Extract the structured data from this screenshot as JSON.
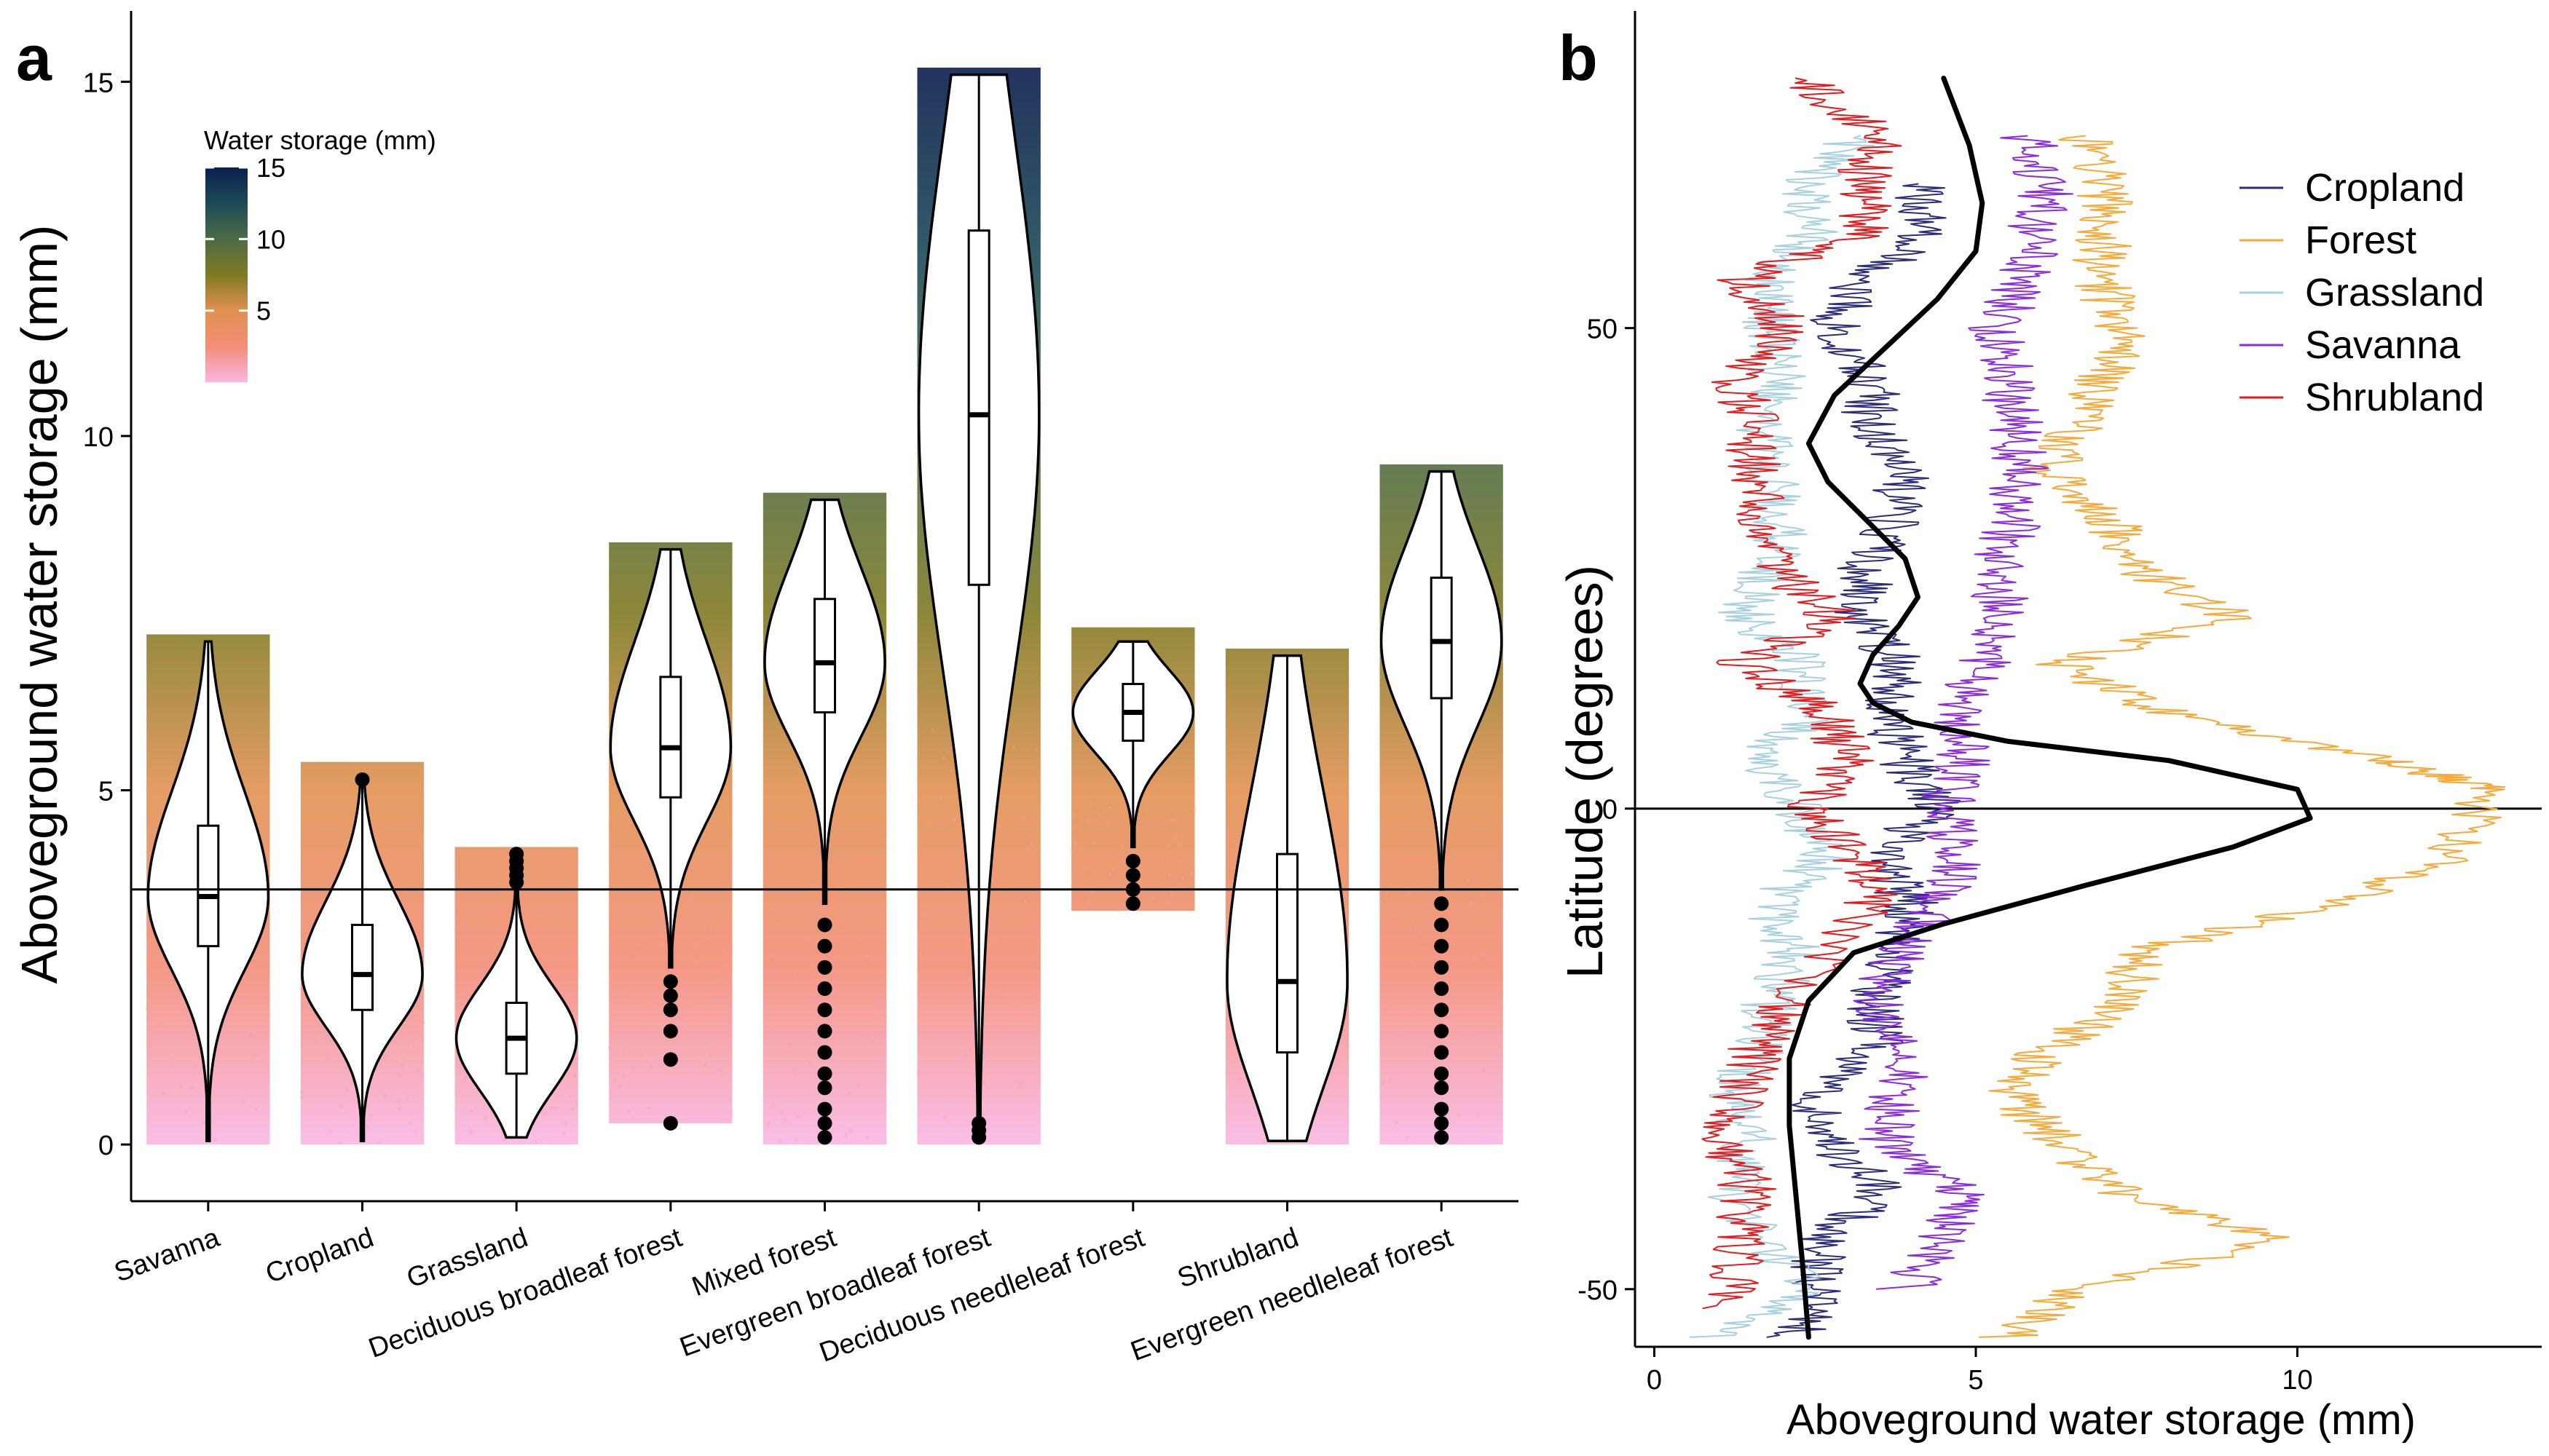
{
  "panels": {
    "a": {
      "letter": "a"
    },
    "b": {
      "letter": "b"
    }
  },
  "chart_data": [
    {
      "panel": "a",
      "type": "violin",
      "ylabel": "Aboveground water storage (mm)",
      "ylim": [
        -0.8,
        16
      ],
      "yticks": [
        0,
        5,
        10,
        15
      ],
      "reference_line_y": 3.6,
      "legend": {
        "title": "Water storage (mm)",
        "ticks": [
          5,
          10,
          15
        ],
        "placement": "top-left",
        "colors": [
          "#f9b6e4",
          "#f38d78",
          "#e29152",
          "#7f7a24",
          "#4d6b46",
          "#1d4a57",
          "#0b1f4d"
        ]
      },
      "categories": [
        "Savanna",
        "Cropland",
        "Grassland",
        "Deciduous broadleaf forest",
        "Mixed forest",
        "Evergreen broadleaf forest",
        "Deciduous needleleaf forest",
        "Shrubland",
        "Evergreen needleleaf forest"
      ],
      "series": [
        {
          "category": "Savanna",
          "min": 0.05,
          "q1": 2.8,
          "median": 3.5,
          "q3": 4.5,
          "max": 7.1,
          "scatter_min": 0.0,
          "scatter_max": 7.2,
          "outliers": []
        },
        {
          "category": "Cropland",
          "min": 0.05,
          "q1": 1.9,
          "median": 2.4,
          "q3": 3.1,
          "max": 5.2,
          "scatter_min": 0.0,
          "scatter_max": 5.4,
          "outliers": [
            5.15
          ]
        },
        {
          "category": "Grassland",
          "min": 0.1,
          "q1": 1.0,
          "median": 1.5,
          "q3": 2.0,
          "max": 4.1,
          "scatter_min": 0.0,
          "scatter_max": 4.2,
          "outliers": [
            3.7,
            3.8,
            3.9,
            4.0,
            4.1
          ]
        },
        {
          "category": "Deciduous broadleaf forest",
          "min": 2.5,
          "q1": 4.9,
          "median": 5.6,
          "q3": 6.6,
          "max": 8.4,
          "scatter_min": 0.3,
          "scatter_max": 8.5,
          "outliers": [
            0.3,
            1.2,
            1.6,
            1.9,
            2.1,
            2.3
          ]
        },
        {
          "category": "Mixed forest",
          "min": 3.4,
          "q1": 6.1,
          "median": 6.8,
          "q3": 7.7,
          "max": 9.1,
          "scatter_min": 0.0,
          "scatter_max": 9.2,
          "outliers": [
            0.1,
            0.3,
            0.5,
            0.8,
            1.0,
            1.3,
            1.6,
            1.9,
            2.2,
            2.5,
            2.8,
            3.1
          ]
        },
        {
          "category": "Evergreen broadleaf forest",
          "min": 0.1,
          "q1": 7.9,
          "median": 10.3,
          "q3": 12.9,
          "max": 15.1,
          "scatter_min": 0.0,
          "scatter_max": 15.2,
          "outliers": [
            0.1,
            0.2,
            0.3
          ]
        },
        {
          "category": "Deciduous needleleaf forest",
          "min": 4.2,
          "q1": 5.7,
          "median": 6.1,
          "q3": 6.5,
          "max": 7.1,
          "scatter_min": 3.3,
          "scatter_max": 7.3,
          "outliers": [
            3.4,
            3.6,
            3.8,
            4.0
          ]
        },
        {
          "category": "Shrubland",
          "min": 0.05,
          "q1": 1.3,
          "median": 2.3,
          "q3": 4.1,
          "max": 6.9,
          "scatter_min": 0.0,
          "scatter_max": 7.0,
          "outliers": []
        },
        {
          "category": "Evergreen needleleaf forest",
          "min": 3.6,
          "q1": 6.3,
          "median": 7.1,
          "q3": 8.0,
          "max": 9.5,
          "scatter_min": 0.0,
          "scatter_max": 9.6,
          "outliers": [
            0.1,
            0.3,
            0.5,
            0.8,
            1.0,
            1.3,
            1.6,
            1.9,
            2.2,
            2.5,
            2.8,
            3.1,
            3.4
          ]
        }
      ]
    },
    {
      "panel": "b",
      "type": "line",
      "xlabel": "Aboveground water storage (mm)",
      "ylabel": "Latitude (degrees)",
      "xlim": [
        -0.3,
        13.8
      ],
      "ylim": [
        -56,
        83
      ],
      "xticks": [
        0,
        5,
        10
      ],
      "yticks": [
        -50,
        0,
        50
      ],
      "reference_line_y": 0,
      "legend_placement": "top-right",
      "series": [
        {
          "name": "Cropland",
          "color": "#2b2c7c",
          "width": 2,
          "points": [
            [
              2.2,
              -55
            ],
            [
              2.5,
              -50
            ],
            [
              2.6,
              -45
            ],
            [
              3.6,
              -40
            ],
            [
              2.8,
              -35
            ],
            [
              2.4,
              -30
            ],
            [
              3.5,
              -25
            ],
            [
              3.4,
              -20
            ],
            [
              3.8,
              -15
            ],
            [
              4.0,
              -10
            ],
            [
              3.5,
              -5
            ],
            [
              4.4,
              0
            ],
            [
              3.9,
              5
            ],
            [
              3.6,
              10
            ],
            [
              3.8,
              15
            ],
            [
              3.2,
              20
            ],
            [
              3.3,
              25
            ],
            [
              3.7,
              30
            ],
            [
              3.9,
              35
            ],
            [
              3.3,
              40
            ],
            [
              3.4,
              45
            ],
            [
              2.8,
              50
            ],
            [
              3.2,
              55
            ],
            [
              4.3,
              60
            ],
            [
              4.1,
              65
            ]
          ]
        },
        {
          "name": "Forest",
          "color": "#f7a838",
          "width": 2,
          "points": [
            [
              5.5,
              -55
            ],
            [
              6.5,
              -50
            ],
            [
              9.7,
              -45
            ],
            [
              7.2,
              -40
            ],
            [
              6.4,
              -35
            ],
            [
              5.5,
              -30
            ],
            [
              6.1,
              -25
            ],
            [
              7.4,
              -20
            ],
            [
              7.5,
              -15
            ],
            [
              10.5,
              -10
            ],
            [
              12.4,
              -5
            ],
            [
              13.0,
              2
            ],
            [
              11.3,
              5
            ],
            [
              8.0,
              10
            ],
            [
              6.3,
              15
            ],
            [
              9.0,
              20
            ],
            [
              7.5,
              25
            ],
            [
              7.1,
              30
            ],
            [
              6.1,
              35
            ],
            [
              6.6,
              40
            ],
            [
              7.0,
              45
            ],
            [
              7.3,
              50
            ],
            [
              6.9,
              55
            ],
            [
              7.0,
              60
            ],
            [
              7.0,
              65
            ],
            [
              6.7,
              70
            ]
          ]
        },
        {
          "name": "Grassland",
          "color": "#a7d0e0",
          "width": 2,
          "points": [
            [
              1.0,
              -55
            ],
            [
              2.3,
              -50
            ],
            [
              1.2,
              -40
            ],
            [
              1.5,
              -35
            ],
            [
              1.2,
              -30
            ],
            [
              1.6,
              -25
            ],
            [
              1.8,
              -20
            ],
            [
              2.2,
              -15
            ],
            [
              1.8,
              -10
            ],
            [
              2.7,
              -5
            ],
            [
              2.2,
              0
            ],
            [
              1.6,
              5
            ],
            [
              2.4,
              10
            ],
            [
              2.3,
              15
            ],
            [
              1.4,
              20
            ],
            [
              1.8,
              25
            ],
            [
              2.0,
              30
            ],
            [
              1.8,
              35
            ],
            [
              1.7,
              40
            ],
            [
              1.9,
              45
            ],
            [
              1.8,
              50
            ],
            [
              1.8,
              55
            ],
            [
              2.4,
              60
            ],
            [
              2.4,
              65
            ],
            [
              3.2,
              70
            ]
          ]
        },
        {
          "name": "Savanna",
          "color": "#8a2be2",
          "width": 2,
          "points": [
            [
              3.9,
              -50
            ],
            [
              4.6,
              -44
            ],
            [
              4.8,
              -40
            ],
            [
              3.6,
              -35
            ],
            [
              3.7,
              -30
            ],
            [
              4.0,
              -25
            ],
            [
              3.4,
              -20
            ],
            [
              3.8,
              -15
            ],
            [
              4.4,
              -10
            ],
            [
              4.7,
              -5
            ],
            [
              4.5,
              0
            ],
            [
              4.8,
              5
            ],
            [
              4.7,
              10
            ],
            [
              5.1,
              15
            ],
            [
              5.4,
              20
            ],
            [
              5.3,
              25
            ],
            [
              5.6,
              30
            ],
            [
              5.7,
              35
            ],
            [
              5.6,
              40
            ],
            [
              5.5,
              45
            ],
            [
              5.3,
              50
            ],
            [
              5.8,
              55
            ],
            [
              5.9,
              60
            ],
            [
              6.1,
              65
            ],
            [
              5.8,
              70
            ]
          ]
        },
        {
          "name": "Shrubland",
          "color": "#e41a1c",
          "width": 2,
          "points": [
            [
              1.2,
              -52
            ],
            [
              1.3,
              -45
            ],
            [
              1.5,
              -40
            ],
            [
              1.1,
              -35
            ],
            [
              1.3,
              -30
            ],
            [
              1.6,
              -25
            ],
            [
              2.1,
              -20
            ],
            [
              3.4,
              -10
            ],
            [
              3.2,
              -5
            ],
            [
              2.4,
              0
            ],
            [
              3.0,
              5
            ],
            [
              2.7,
              10
            ],
            [
              1.3,
              15
            ],
            [
              2.8,
              20
            ],
            [
              1.9,
              25
            ],
            [
              1.7,
              30
            ],
            [
              1.5,
              35
            ],
            [
              1.6,
              40
            ],
            [
              1.2,
              45
            ],
            [
              2.1,
              50
            ],
            [
              1.4,
              55
            ],
            [
              3.3,
              60
            ],
            [
              3.2,
              65
            ],
            [
              3.5,
              70
            ],
            [
              2.2,
              76
            ]
          ]
        },
        {
          "name": "",
          "color": "#000000",
          "width": 7,
          "points": [
            [
              2.4,
              -55
            ],
            [
              2.3,
              -47
            ],
            [
              2.2,
              -40
            ],
            [
              2.1,
              -33
            ],
            [
              2.1,
              -26
            ],
            [
              2.4,
              -20
            ],
            [
              3.1,
              -15
            ],
            [
              4.5,
              -12
            ],
            [
              6.7,
              -8
            ],
            [
              9.0,
              -4
            ],
            [
              10.2,
              -1
            ],
            [
              10.0,
              2
            ],
            [
              8.0,
              5
            ],
            [
              5.5,
              7
            ],
            [
              4.0,
              9
            ],
            [
              3.4,
              11
            ],
            [
              3.2,
              13
            ],
            [
              3.4,
              16
            ],
            [
              3.8,
              19
            ],
            [
              4.1,
              22
            ],
            [
              3.9,
              26
            ],
            [
              3.3,
              30
            ],
            [
              2.7,
              34
            ],
            [
              2.4,
              38
            ],
            [
              2.8,
              43
            ],
            [
              3.6,
              48
            ],
            [
              4.4,
              53
            ],
            [
              5.0,
              58
            ],
            [
              5.1,
              63
            ],
            [
              4.9,
              69
            ],
            [
              4.5,
              76
            ]
          ]
        }
      ]
    }
  ]
}
